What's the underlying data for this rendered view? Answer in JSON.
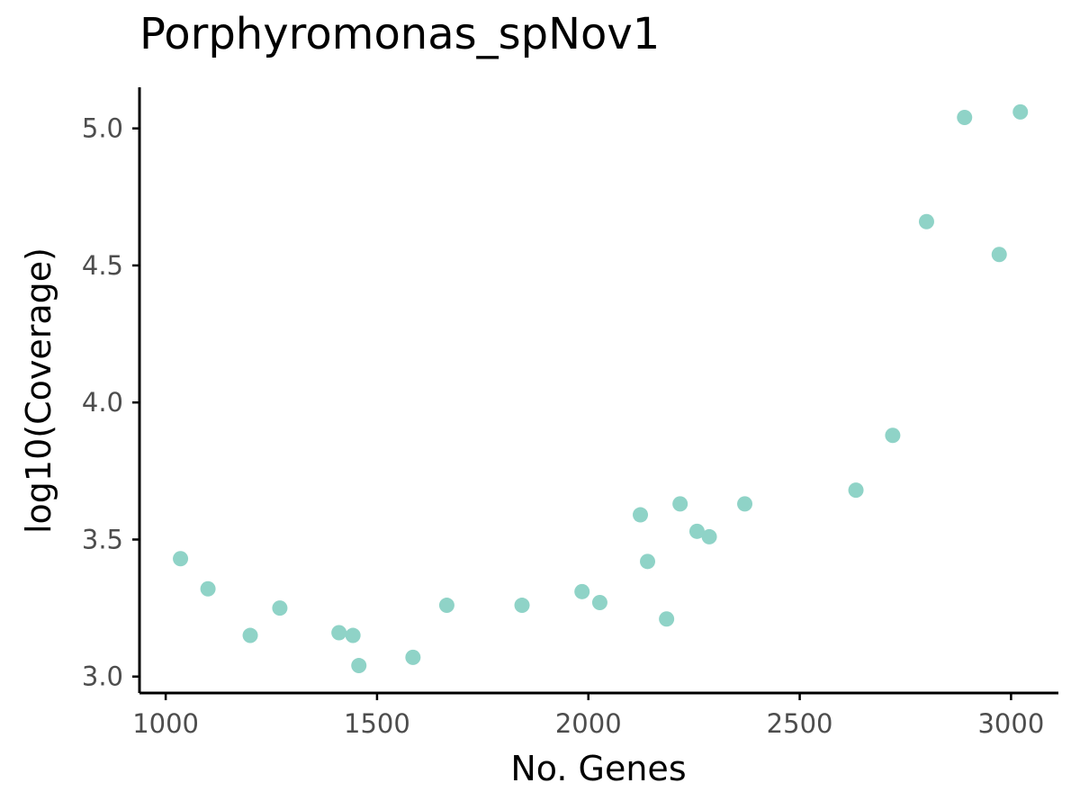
{
  "chart_data": {
    "type": "scatter",
    "title": "Porphyromonas_spNov1",
    "xlabel": "No. Genes",
    "ylabel": "log10(Coverage)",
    "xlim": [
      938,
      3112
    ],
    "ylim": [
      2.94,
      5.15
    ],
    "xticks": [
      1000,
      1500,
      2000,
      2500,
      3000
    ],
    "yticks": [
      3.0,
      3.5,
      4.0,
      4.5,
      5.0
    ],
    "xtick_labels": [
      "1000",
      "1500",
      "2000",
      "2500",
      "3000"
    ],
    "ytick_labels": [
      "3.0",
      "3.5",
      "4.0",
      "4.5",
      "5.0"
    ],
    "grid": false,
    "point_color": "#8fd3c7",
    "points": [
      {
        "x": 1035,
        "y": 3.43
      },
      {
        "x": 1100,
        "y": 3.32
      },
      {
        "x": 1200,
        "y": 3.15
      },
      {
        "x": 1270,
        "y": 3.25
      },
      {
        "x": 1410,
        "y": 3.16
      },
      {
        "x": 1443,
        "y": 3.15
      },
      {
        "x": 1457,
        "y": 3.04
      },
      {
        "x": 1585,
        "y": 3.07
      },
      {
        "x": 1665,
        "y": 3.26
      },
      {
        "x": 1843,
        "y": 3.26
      },
      {
        "x": 1985,
        "y": 3.31
      },
      {
        "x": 2027,
        "y": 3.27
      },
      {
        "x": 2123,
        "y": 3.59
      },
      {
        "x": 2140,
        "y": 3.42
      },
      {
        "x": 2185,
        "y": 3.21
      },
      {
        "x": 2217,
        "y": 3.63
      },
      {
        "x": 2257,
        "y": 3.53
      },
      {
        "x": 2286,
        "y": 3.51
      },
      {
        "x": 2370,
        "y": 3.63
      },
      {
        "x": 2633,
        "y": 3.68
      },
      {
        "x": 2720,
        "y": 3.88
      },
      {
        "x": 2800,
        "y": 4.66
      },
      {
        "x": 2890,
        "y": 5.04
      },
      {
        "x": 2972,
        "y": 4.54
      },
      {
        "x": 3022,
        "y": 5.06
      }
    ]
  }
}
